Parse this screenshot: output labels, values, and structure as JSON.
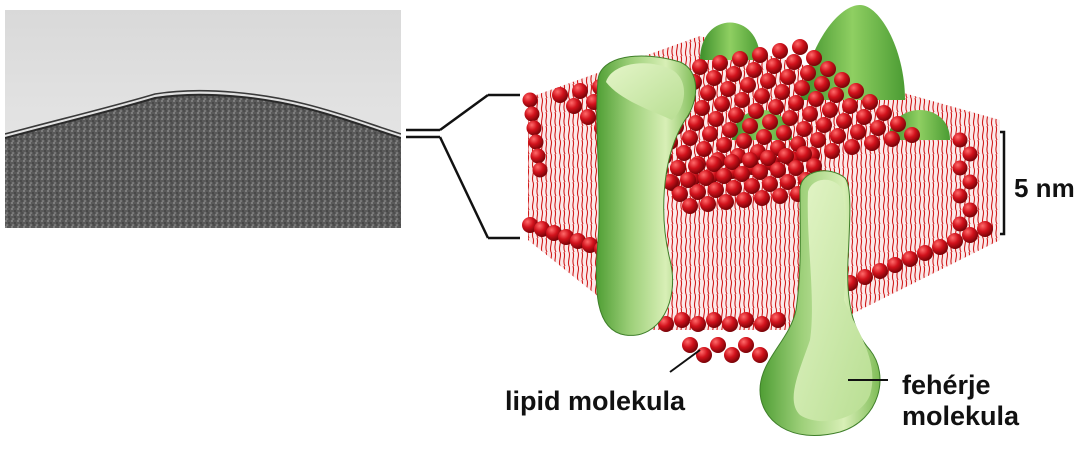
{
  "labels": {
    "scale": "5 nm",
    "lipid": "lipid molekula",
    "protein_line1": "fehérje",
    "protein_line2": "molekula"
  },
  "colors": {
    "lipid_head": "#d2121c",
    "lipid_tail": "#cc1a1a",
    "protein_light": "#cfe8a6",
    "protein_dark": "#5faf3c",
    "micrograph_dark": "#4a4a4a",
    "micrograph_light": "#e6e6e6",
    "line": "#111111"
  }
}
